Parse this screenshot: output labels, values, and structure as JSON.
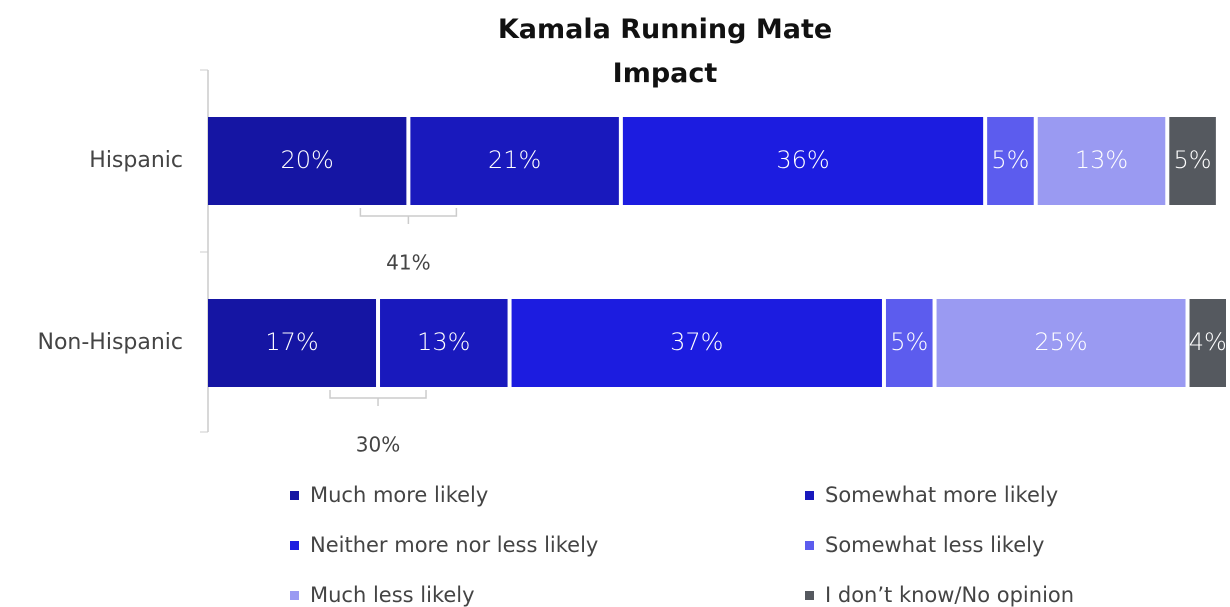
{
  "chart_data": {
    "type": "stacked_barh",
    "title": "Kamala Running Mate Impact",
    "categories": [
      "Hispanic",
      "Non-Hispanic"
    ],
    "series": [
      {
        "name": "Much more likely",
        "color": "#1515a3",
        "values": [
          20,
          17
        ],
        "value_labels": [
          "20%",
          "17%"
        ]
      },
      {
        "name": "Somewhat more likely",
        "color": "#1919bd",
        "values": [
          21,
          13
        ],
        "value_labels": [
          "21%",
          "13%"
        ]
      },
      {
        "name": "Neither more nor less likely",
        "color": "#1c1ce0",
        "values": [
          36,
          37
        ],
        "value_labels": [
          "36%",
          "37%"
        ]
      },
      {
        "name": "Somewhat less likely",
        "color": "#5c5cee",
        "values": [
          5,
          5
        ],
        "value_labels": [
          "5%",
          "5%"
        ]
      },
      {
        "name": "Much less likely",
        "color": "#9a9af2",
        "values": [
          13,
          25
        ],
        "value_labels": [
          "13%",
          "25%"
        ]
      },
      {
        "name": "I don’t know/No opinion",
        "color": "#55595f",
        "values": [
          5,
          4
        ],
        "value_labels": [
          "5%",
          "4%"
        ]
      }
    ],
    "annotations": [
      "41%",
      "30%"
    ]
  }
}
